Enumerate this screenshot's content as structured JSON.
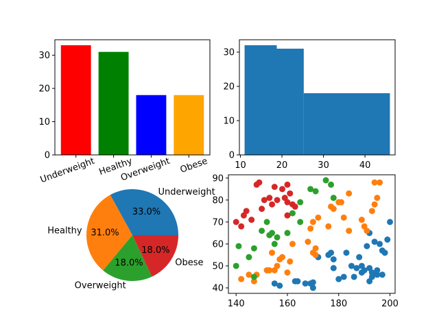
{
  "chart_data": [
    {
      "type": "bar",
      "categories": [
        "Underweight",
        "Healthy",
        "Overweight",
        "Obese"
      ],
      "values": [
        33,
        31,
        18,
        18
      ],
      "colors": [
        "#ff0000",
        "#008000",
        "#0000ff",
        "#ffa500"
      ],
      "ylim": [
        0,
        34.65
      ],
      "yticks": [
        0,
        10,
        20,
        30
      ],
      "xtick_rotation_deg": 20
    },
    {
      "type": "histogram",
      "bins": [
        {
          "start": 11,
          "end": 18.75,
          "count": 32
        },
        {
          "start": 18.75,
          "end": 25.25,
          "count": 31
        },
        {
          "start": 25.25,
          "end": 46,
          "count": 18
        }
      ],
      "xlim": [
        9.75,
        47.25
      ],
      "ylim": [
        0,
        33.6
      ],
      "xticks": [
        10,
        20,
        30,
        40
      ],
      "yticks": [
        0,
        10,
        20,
        30
      ],
      "color": "#1f77b4"
    },
    {
      "type": "pie",
      "labels": [
        "Underweight",
        "Healthy",
        "Overweight",
        "Obese"
      ],
      "values": [
        33.0,
        31.0,
        18.0,
        18.0
      ],
      "pct_labels": [
        "33.0%",
        "31.0%",
        "18.0%",
        "18.0%"
      ],
      "colors": [
        "#1f77b4",
        "#ff7f0e",
        "#2ca02c",
        "#d62728"
      ],
      "startangle": 0
    },
    {
      "type": "scatter",
      "xlim": [
        137,
        202
      ],
      "ylim": [
        37.5,
        91.5
      ],
      "xticks": [
        140,
        160,
        180,
        200
      ],
      "yticks": [
        40,
        50,
        60,
        70,
        80,
        90
      ],
      "series": [
        {
          "color": "#1f77b4",
          "points": [
            [
              169,
              42
            ],
            [
              170,
              42.5
            ],
            [
              163,
              43
            ],
            [
              167,
              42
            ],
            [
              155,
              42
            ],
            [
              157,
              41
            ],
            [
              170,
              40
            ],
            [
              172,
              54
            ],
            [
              176,
              55
            ],
            [
              177,
              56
            ],
            [
              178,
              53
            ],
            [
              183,
              56
            ],
            [
              188,
              54
            ],
            [
              187,
              49
            ],
            [
              189,
              50
            ],
            [
              190,
              48
            ],
            [
              192,
              49
            ],
            [
              193,
              47
            ],
            [
              195,
              46
            ],
            [
              193,
              45
            ],
            [
              192,
              43
            ],
            [
              195,
              48
            ],
            [
              197,
              57
            ],
            [
              198,
              56
            ],
            [
              197,
              46
            ],
            [
              199,
              62
            ],
            [
              200,
              70
            ],
            [
              196,
              60
            ],
            [
              194,
              61
            ],
            [
              192,
              65
            ],
            [
              191,
              59
            ],
            [
              178,
              49
            ],
            [
              180,
              44
            ],
            [
              182,
              45
            ],
            [
              185,
              50
            ],
            [
              186,
              45
            ],
            [
              189,
              47
            ],
            [
              164,
              43
            ]
          ]
        },
        {
          "color": "#ff7f0e",
          "points": [
            [
              142,
              44
            ],
            [
              145,
              46
            ],
            [
              147,
              43
            ],
            [
              148,
              46
            ],
            [
              152,
              48
            ],
            [
              155,
              48
            ],
            [
              153,
              48
            ],
            [
              156,
              50
            ],
            [
              157,
              53
            ],
            [
              154,
              56
            ],
            [
              158,
              54
            ],
            [
              160,
              47
            ],
            [
              161,
              52
            ],
            [
              162,
              60
            ],
            [
              168,
              61
            ],
            [
              170,
              56
            ],
            [
              171,
              58
            ],
            [
              171,
              55
            ],
            [
              169,
              67
            ],
            [
              170,
              70
            ],
            [
              172,
              72
            ],
            [
              176,
              68
            ],
            [
              178,
              76
            ],
            [
              180,
              79
            ],
            [
              181,
              79
            ],
            [
              184,
              83
            ],
            [
              189,
              71
            ],
            [
              190,
              68
            ],
            [
              191,
              66
            ],
            [
              193,
              75
            ],
            [
              194,
              78
            ],
            [
              195,
              81
            ],
            [
              194,
              88
            ],
            [
              196,
              88
            ],
            [
              184,
              66
            ],
            [
              182,
              72
            ],
            [
              177,
              77
            ]
          ]
        },
        {
          "color": "#2ca02c",
          "points": [
            [
              140,
              50
            ],
            [
              141,
              59
            ],
            [
              145,
              54
            ],
            [
              147,
              58
            ],
            [
              153,
              64
            ],
            [
              154,
              65
            ],
            [
              152,
              70
            ],
            [
              150,
              66
            ],
            [
              155,
              60
            ],
            [
              156,
              63
            ],
            [
              160,
              65
            ],
            [
              162,
              74
            ],
            [
              165,
              79
            ],
            [
              165,
              70
            ],
            [
              169,
              85
            ],
            [
              171,
              84
            ],
            [
              175,
              89
            ],
            [
              177,
              87
            ],
            [
              178,
              81
            ],
            [
              147,
              45
            ]
          ]
        },
        {
          "color": "#d62728",
          "points": [
            [
              140,
              70
            ],
            [
              142,
              68
            ],
            [
              143,
              73
            ],
            [
              144,
              75
            ],
            [
              146,
              71
            ],
            [
              148,
              87
            ],
            [
              149,
              88
            ],
            [
              150,
              76
            ],
            [
              151,
              80
            ],
            [
              153,
              81
            ],
            [
              154,
              78
            ],
            [
              155,
              86
            ],
            [
              156,
              80
            ],
            [
              158,
              85
            ],
            [
              159,
              81
            ],
            [
              160,
              87
            ],
            [
              160,
              79
            ],
            [
              161,
              83
            ],
            [
              162,
              78
            ],
            [
              163,
              77
            ],
            [
              160,
              73
            ]
          ]
        }
      ]
    }
  ]
}
